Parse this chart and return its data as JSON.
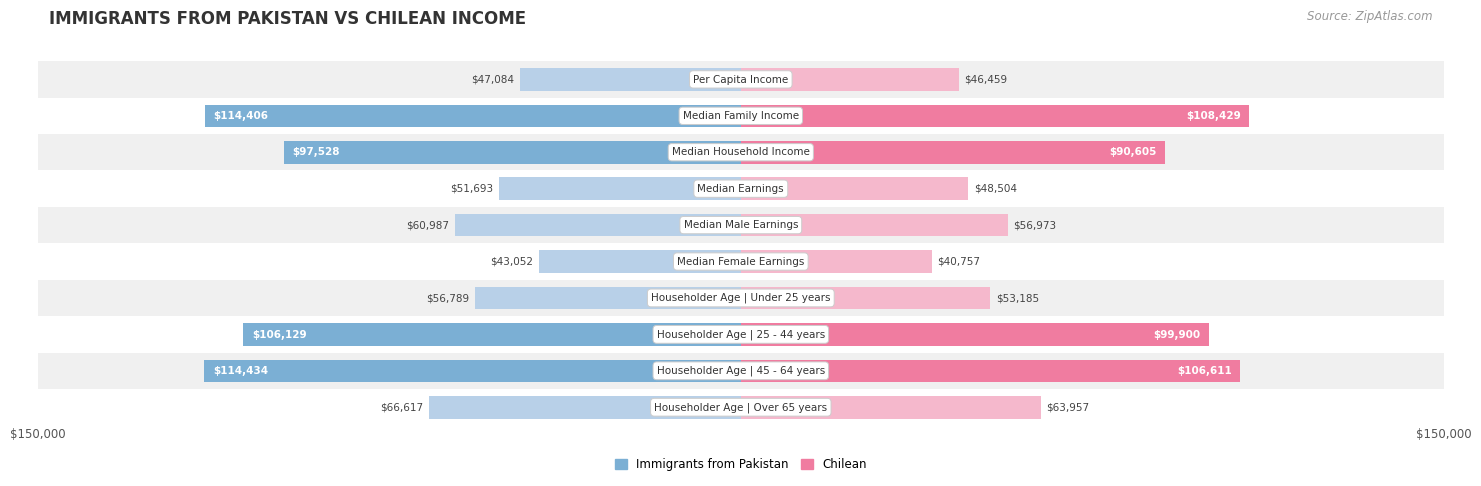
{
  "title": "IMMIGRANTS FROM PAKISTAN VS CHILEAN INCOME",
  "source": "Source: ZipAtlas.com",
  "categories": [
    "Per Capita Income",
    "Median Family Income",
    "Median Household Income",
    "Median Earnings",
    "Median Male Earnings",
    "Median Female Earnings",
    "Householder Age | Under 25 years",
    "Householder Age | 25 - 44 years",
    "Householder Age | 45 - 64 years",
    "Householder Age | Over 65 years"
  ],
  "pakistan_values": [
    47084,
    114406,
    97528,
    51693,
    60987,
    43052,
    56789,
    106129,
    114434,
    66617
  ],
  "chilean_values": [
    46459,
    108429,
    90605,
    48504,
    56973,
    40757,
    53185,
    99900,
    106611,
    63957
  ],
  "pakistan_labels": [
    "$47,084",
    "$114,406",
    "$97,528",
    "$51,693",
    "$60,987",
    "$43,052",
    "$56,789",
    "$106,129",
    "$114,434",
    "$66,617"
  ],
  "chilean_labels": [
    "$46,459",
    "$108,429",
    "$90,605",
    "$48,504",
    "$56,973",
    "$40,757",
    "$53,185",
    "$99,900",
    "$106,611",
    "$63,957"
  ],
  "max_value": 150000,
  "axis_label": "$150,000",
  "pakistan_bar_color_full": "#7bafd4",
  "pakistan_bar_color_light": "#b8d0e8",
  "chilean_bar_color_full": "#f07ca0",
  "chilean_bar_color_light": "#f5b8cc",
  "pakistan_text_threshold": 80000,
  "chilean_text_threshold": 80000,
  "row_bg_even": "#f0f0f0",
  "row_bg_odd": "#ffffff",
  "legend_pakistan": "Immigrants from Pakistan",
  "legend_chilean": "Chilean",
  "title_fontsize": 12,
  "source_fontsize": 8.5,
  "label_fontsize": 7.5,
  "category_fontsize": 7.5
}
